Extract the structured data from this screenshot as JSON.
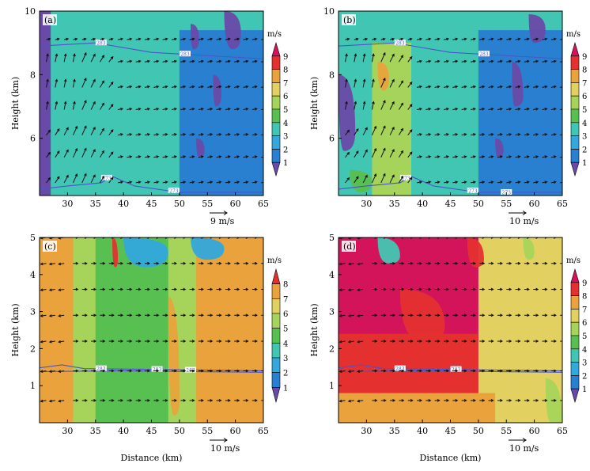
{
  "shared": {
    "xlabel": "Distance (km)",
    "ylabel": "Height (km)",
    "cbar_title": "m/s",
    "x_ticks": [
      "30",
      "35",
      "40",
      "45",
      "50",
      "55",
      "60",
      "65"
    ],
    "colors": {
      "1": "#6a4aa8",
      "2": "#2a80d0",
      "3": "#34a8dc",
      "4": "#42c6b4",
      "5": "#58c050",
      "6": "#a6d45a",
      "7": "#e2d060",
      "8": "#e9a23c",
      "9": "#e53030",
      "10": "#d4145a"
    },
    "contour_color": "#4a55c8"
  },
  "chart_data": [
    {
      "type": "contour",
      "panel": "(a)",
      "xlim": [
        25,
        65
      ],
      "ylim": [
        4.2,
        10
      ],
      "y_ticks": [
        "6",
        "8",
        "10"
      ],
      "colorbar": [
        "1",
        "2",
        "3",
        "4",
        "5",
        "6",
        "7",
        "8",
        "9"
      ],
      "vector_ref": "9  m/s",
      "contour_labels": [
        "283",
        "283",
        "273",
        "273"
      ],
      "background_level": "4",
      "features": [
        {
          "level": "2",
          "zone": "east column",
          "x_from": 50,
          "x_to": 65,
          "y_from": 4.2,
          "y_to": 9.4
        },
        {
          "level": "1",
          "zone": "west column",
          "x_from": 25,
          "x_to": 27,
          "y_from": 4.2,
          "y_to": 10
        }
      ]
    },
    {
      "type": "contour",
      "panel": "(b)",
      "xlim": [
        25,
        65
      ],
      "ylim": [
        4.2,
        10
      ],
      "y_ticks": [
        "6",
        "8",
        "10"
      ],
      "colorbar": [
        "1",
        "2",
        "3",
        "4",
        "5",
        "6",
        "7",
        "8",
        "9"
      ],
      "vector_ref": "10  m/s",
      "contour_labels": [
        "283",
        "283",
        "273",
        "273",
        "273"
      ],
      "background_level": "4",
      "features": [
        {
          "level": "2",
          "zone": "east column",
          "x_from": 50,
          "x_to": 65,
          "y_from": 4.2,
          "y_to": 9.4
        },
        {
          "level": "6",
          "zone": "central band",
          "x_from": 31,
          "x_to": 38,
          "y_from": 4.2,
          "y_to": 9
        }
      ]
    },
    {
      "type": "contour",
      "panel": "(c)",
      "xlim": [
        25,
        65
      ],
      "ylim": [
        0,
        5
      ],
      "y_ticks": [
        "1",
        "2",
        "3",
        "4",
        "5"
      ],
      "colorbar": [
        "1",
        "2",
        "3",
        "4",
        "5",
        "6",
        "7",
        "8"
      ],
      "vector_ref": "10  m/s",
      "contour_labels": [
        "283",
        "283",
        "283"
      ],
      "background_level": "6",
      "features": [
        {
          "level": "8",
          "zone": "west strip",
          "x_from": 25,
          "x_to": 31,
          "y_from": 0,
          "y_to": 5
        },
        {
          "level": "5",
          "zone": "central wedge",
          "x_from": 35,
          "x_to": 48,
          "y_from": 0,
          "y_to": 5
        },
        {
          "level": "8",
          "zone": "east strip",
          "x_from": 53,
          "x_to": 65,
          "y_from": 0,
          "y_to": 5
        }
      ]
    },
    {
      "type": "contour",
      "panel": "(d)",
      "xlim": [
        25,
        65
      ],
      "ylim": [
        0,
        5
      ],
      "y_ticks": [
        "1",
        "2",
        "3",
        "4",
        "5"
      ],
      "colorbar": [
        "1",
        "2",
        "3",
        "4",
        "5",
        "6",
        "7",
        "8",
        "9"
      ],
      "vector_ref": "10  m/s",
      "contour_labels": [
        "283",
        "283"
      ],
      "background_level": "7",
      "features": [
        {
          "level": "10",
          "zone": "upper west block",
          "x_from": 25,
          "x_to": 50,
          "y_from": 2.2,
          "y_to": 5
        },
        {
          "level": "9",
          "zone": "lower west block",
          "x_from": 25,
          "x_to": 50,
          "y_from": 0.6,
          "y_to": 2.4
        },
        {
          "level": "8",
          "zone": "near-ground band",
          "x_from": 25,
          "x_to": 53,
          "y_from": 0,
          "y_to": 0.8
        }
      ]
    }
  ]
}
